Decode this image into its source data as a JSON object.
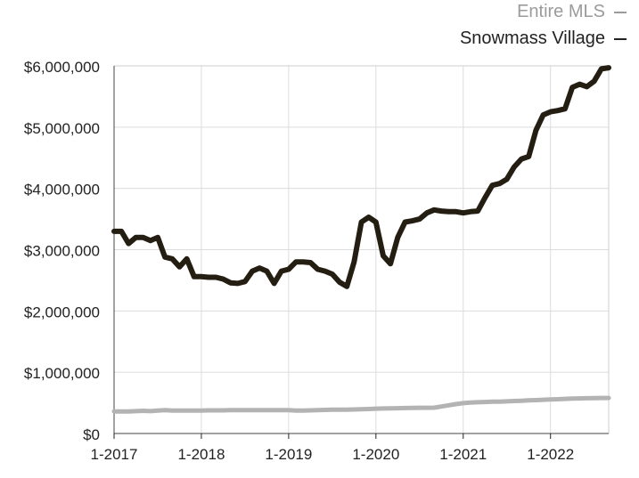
{
  "chart_data": {
    "type": "line",
    "title": "",
    "xlabel": "",
    "ylabel": "",
    "x_tick_labels": [
      "1-2017",
      "1-2018",
      "1-2019",
      "1-2020",
      "1-2021",
      "1-2022"
    ],
    "y_tick_labels": [
      "$6,000,000",
      "$5,000,000",
      "$4,000,000",
      "$3,000,000",
      "$2,000,000",
      "$1,000,000",
      "$0"
    ],
    "ylim": [
      0,
      6000000
    ],
    "x_range": [
      "1-2017",
      "9-2022"
    ],
    "grid": true,
    "legend_position": "top-right",
    "months": [
      "1-2017",
      "2-2017",
      "3-2017",
      "4-2017",
      "5-2017",
      "6-2017",
      "7-2017",
      "8-2017",
      "9-2017",
      "10-2017",
      "11-2017",
      "12-2017",
      "1-2018",
      "2-2018",
      "3-2018",
      "4-2018",
      "5-2018",
      "6-2018",
      "7-2018",
      "8-2018",
      "9-2018",
      "10-2018",
      "11-2018",
      "12-2018",
      "1-2019",
      "2-2019",
      "3-2019",
      "4-2019",
      "5-2019",
      "6-2019",
      "7-2019",
      "8-2019",
      "9-2019",
      "10-2019",
      "11-2019",
      "12-2019",
      "1-2020",
      "2-2020",
      "3-2020",
      "4-2020",
      "5-2020",
      "6-2020",
      "7-2020",
      "8-2020",
      "9-2020",
      "10-2020",
      "11-2020",
      "12-2020",
      "1-2021",
      "2-2021",
      "3-2021",
      "4-2021",
      "5-2021",
      "6-2021",
      "7-2021",
      "8-2021",
      "9-2021",
      "10-2021",
      "11-2021",
      "12-2021",
      "1-2022",
      "2-2022",
      "3-2022",
      "4-2022",
      "5-2022",
      "6-2022",
      "7-2022",
      "8-2022",
      "9-2022"
    ],
    "series": [
      {
        "name": "Entire MLS",
        "color": "#b3b3b3",
        "values": [
          360000,
          360000,
          360000,
          365000,
          370000,
          365000,
          375000,
          380000,
          375000,
          375000,
          375000,
          375000,
          375000,
          378000,
          378000,
          378000,
          380000,
          380000,
          382000,
          380000,
          380000,
          380000,
          382000,
          382000,
          380000,
          375000,
          375000,
          378000,
          380000,
          385000,
          390000,
          390000,
          390000,
          392000,
          395000,
          400000,
          405000,
          408000,
          410000,
          412000,
          415000,
          418000,
          420000,
          420000,
          422000,
          440000,
          460000,
          480000,
          495000,
          505000,
          510000,
          515000,
          520000,
          520000,
          525000,
          530000,
          535000,
          540000,
          545000,
          550000,
          555000,
          560000,
          565000,
          570000,
          572000,
          575000,
          578000,
          580000,
          580000
        ]
      },
      {
        "name": "Snowmass Village",
        "color": "#241d12",
        "values": [
          3300000,
          3300000,
          3100000,
          3200000,
          3200000,
          3150000,
          3200000,
          2880000,
          2850000,
          2720000,
          2850000,
          2560000,
          2560000,
          2550000,
          2550000,
          2520000,
          2460000,
          2450000,
          2480000,
          2650000,
          2700000,
          2650000,
          2450000,
          2650000,
          2680000,
          2800000,
          2800000,
          2790000,
          2680000,
          2650000,
          2600000,
          2470000,
          2400000,
          2800000,
          3450000,
          3530000,
          3450000,
          2900000,
          2770000,
          3200000,
          3450000,
          3470000,
          3500000,
          3600000,
          3650000,
          3630000,
          3620000,
          3620000,
          3600000,
          3620000,
          3630000,
          3850000,
          4050000,
          4080000,
          4150000,
          4350000,
          4480000,
          4520000,
          4950000,
          5200000,
          5250000,
          5270000,
          5300000,
          5650000,
          5700000,
          5660000,
          5750000,
          5950000,
          5970000
        ]
      }
    ]
  }
}
